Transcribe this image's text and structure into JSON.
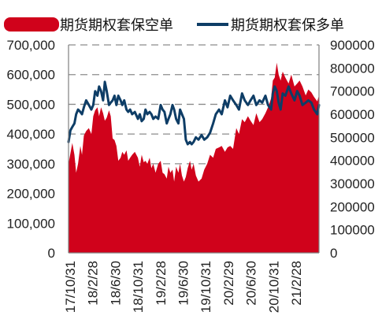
{
  "chart_data": {
    "type": "area",
    "title": "",
    "xlabel": "",
    "ylabel_left": "",
    "ylabel_right": "",
    "colors": {
      "short": "#D0021B",
      "long": "#0E3D66",
      "grid": "#8C8C8C",
      "axis": "#7F7F7F"
    },
    "grid": true,
    "legend_position": "top",
    "x_ticks": [
      "17/10/31",
      "18/2/28",
      "18/6/30",
      "18/10/31",
      "19/2/28",
      "19/6/30",
      "19/10/31",
      "20/2/29",
      "20/6/30",
      "20/10/31",
      "21/2/28"
    ],
    "left_axis": {
      "ylim": [
        0,
        700000
      ],
      "ticks": [
        "0",
        "100,000",
        "200,000",
        "300,000",
        "400,000",
        "500,000",
        "600,000",
        "700,000"
      ]
    },
    "right_axis": {
      "ylim": [
        0,
        900000
      ],
      "ticks": [
        "0",
        "100000",
        "200000",
        "300000",
        "400000",
        "500000",
        "600000",
        "700000",
        "800000",
        "900000"
      ]
    },
    "series": [
      {
        "name": "期货期权套保空单",
        "type": "area",
        "axis": "left",
        "x": [
          "2017-10-31",
          "2017-11-10",
          "2017-11-20",
          "2017-12-01",
          "2017-12-10",
          "2017-12-20",
          "2018-01-01",
          "2018-01-10",
          "2018-01-20",
          "2018-02-01",
          "2018-02-15",
          "2018-02-28",
          "2018-03-10",
          "2018-03-20",
          "2018-04-01",
          "2018-04-10",
          "2018-04-20",
          "2018-05-01",
          "2018-05-10",
          "2018-05-20",
          "2018-06-01",
          "2018-06-10",
          "2018-06-20",
          "2018-06-30",
          "2018-07-10",
          "2018-07-20",
          "2018-08-01",
          "2018-08-10",
          "2018-08-20",
          "2018-09-01",
          "2018-09-10",
          "2018-09-20",
          "2018-10-01",
          "2018-10-15",
          "2018-10-31",
          "2018-11-10",
          "2018-11-20",
          "2018-12-01",
          "2018-12-10",
          "2018-12-20",
          "2019-01-01",
          "2019-01-10",
          "2019-01-20",
          "2019-02-01",
          "2019-02-15",
          "2019-02-28",
          "2019-03-10",
          "2019-03-20",
          "2019-04-01",
          "2019-04-10",
          "2019-04-20",
          "2019-05-01",
          "2019-05-10",
          "2019-05-20",
          "2019-06-01",
          "2019-06-10",
          "2019-06-20",
          "2019-06-30",
          "2019-07-10",
          "2019-07-20",
          "2019-08-01",
          "2019-08-10",
          "2019-08-20",
          "2019-09-01",
          "2019-09-15",
          "2019-10-01",
          "2019-10-15",
          "2019-10-31",
          "2019-11-15",
          "2019-12-01",
          "2019-12-15",
          "2020-01-01",
          "2020-01-15",
          "2020-02-01",
          "2020-02-15",
          "2020-02-29",
          "2020-03-15",
          "2020-04-01",
          "2020-04-15",
          "2020-05-01",
          "2020-05-15",
          "2020-06-01",
          "2020-06-15",
          "2020-06-30",
          "2020-07-15",
          "2020-08-01",
          "2020-08-15",
          "2020-09-01",
          "2020-09-15",
          "2020-10-01",
          "2020-10-10",
          "2020-10-20",
          "2020-10-31",
          "2020-11-10",
          "2020-11-20",
          "2020-12-01",
          "2020-12-15",
          "2021-01-01",
          "2021-01-15",
          "2021-02-01",
          "2021-02-15",
          "2021-02-28",
          "2021-03-15",
          "2021-04-01",
          "2021-04-15",
          "2021-05-01",
          "2021-05-15",
          "2021-06-01",
          "2021-06-10"
        ],
        "values": [
          300000,
          335000,
          370000,
          330000,
          270000,
          300000,
          360000,
          330000,
          395000,
          410000,
          420000,
          400000,
          460000,
          480000,
          490000,
          460000,
          490000,
          470000,
          445000,
          455000,
          480000,
          460000,
          385000,
          380000,
          360000,
          310000,
          320000,
          340000,
          330000,
          345000,
          310000,
          320000,
          330000,
          340000,
          320000,
          290000,
          330000,
          305000,
          310000,
          300000,
          320000,
          285000,
          300000,
          270000,
          300000,
          310000,
          270000,
          265000,
          250000,
          290000,
          270000,
          280000,
          240000,
          290000,
          270000,
          300000,
          260000,
          240000,
          255000,
          285000,
          310000,
          280000,
          300000,
          260000,
          240000,
          250000,
          280000,
          300000,
          330000,
          320000,
          350000,
          355000,
          360000,
          340000,
          355000,
          360000,
          350000,
          420000,
          400000,
          450000,
          440000,
          460000,
          445000,
          430000,
          470000,
          440000,
          450000,
          470000,
          490000,
          520000,
          580000,
          590000,
          640000,
          600000,
          580000,
          610000,
          590000,
          570000,
          600000,
          560000,
          570000,
          580000,
          560000,
          530000,
          550000,
          540000,
          525000,
          510000,
          530000
        ]
      },
      {
        "name": "期货期权套保多单",
        "type": "line",
        "axis": "right",
        "x": [
          "2017-10-31",
          "2017-11-10",
          "2017-11-20",
          "2017-12-01",
          "2017-12-10",
          "2017-12-20",
          "2018-01-01",
          "2018-01-10",
          "2018-01-20",
          "2018-02-01",
          "2018-02-15",
          "2018-02-28",
          "2018-03-10",
          "2018-03-20",
          "2018-04-01",
          "2018-04-10",
          "2018-04-20",
          "2018-05-01",
          "2018-05-10",
          "2018-05-20",
          "2018-06-01",
          "2018-06-10",
          "2018-06-20",
          "2018-06-30",
          "2018-07-10",
          "2018-07-20",
          "2018-08-01",
          "2018-08-10",
          "2018-08-20",
          "2018-09-01",
          "2018-09-10",
          "2018-09-20",
          "2018-10-01",
          "2018-10-15",
          "2018-10-31",
          "2018-11-10",
          "2018-11-20",
          "2018-12-01",
          "2018-12-10",
          "2018-12-20",
          "2019-01-01",
          "2019-01-10",
          "2019-01-20",
          "2019-02-01",
          "2019-02-15",
          "2019-02-28",
          "2019-03-10",
          "2019-03-20",
          "2019-04-01",
          "2019-04-10",
          "2019-04-20",
          "2019-05-01",
          "2019-05-10",
          "2019-05-20",
          "2019-06-01",
          "2019-06-10",
          "2019-06-20",
          "2019-06-30",
          "2019-07-10",
          "2019-07-20",
          "2019-08-01",
          "2019-08-10",
          "2019-08-20",
          "2019-09-01",
          "2019-09-15",
          "2019-10-01",
          "2019-10-15",
          "2019-10-31",
          "2019-11-15",
          "2019-12-01",
          "2019-12-15",
          "2020-01-01",
          "2020-01-15",
          "2020-02-01",
          "2020-02-15",
          "2020-02-29",
          "2020-03-15",
          "2020-04-01",
          "2020-04-15",
          "2020-05-01",
          "2020-05-15",
          "2020-06-01",
          "2020-06-15",
          "2020-06-30",
          "2020-07-15",
          "2020-08-01",
          "2020-08-15",
          "2020-09-01",
          "2020-09-15",
          "2020-10-01",
          "2020-10-10",
          "2020-10-20",
          "2020-10-31",
          "2020-11-10",
          "2020-11-20",
          "2020-12-01",
          "2020-12-15",
          "2021-01-01",
          "2021-01-15",
          "2021-02-01",
          "2021-02-15",
          "2021-02-28",
          "2021-03-15",
          "2021-04-01",
          "2021-04-15",
          "2021-05-01",
          "2021-05-15",
          "2021-06-01",
          "2021-06-10"
        ],
        "values": [
          480000,
          530000,
          545000,
          560000,
          600000,
          620000,
          610000,
          600000,
          630000,
          660000,
          640000,
          620000,
          640000,
          700000,
          680000,
          720000,
          700000,
          660000,
          740000,
          700000,
          640000,
          650000,
          660000,
          680000,
          640000,
          680000,
          660000,
          640000,
          660000,
          620000,
          610000,
          620000,
          600000,
          610000,
          580000,
          600000,
          570000,
          580000,
          620000,
          600000,
          610000,
          600000,
          580000,
          590000,
          580000,
          640000,
          620000,
          610000,
          560000,
          580000,
          600000,
          640000,
          620000,
          580000,
          560000,
          620000,
          600000,
          580000,
          490000,
          470000,
          480000,
          470000,
          480000,
          500000,
          490000,
          510000,
          490000,
          500000,
          520000,
          560000,
          600000,
          620000,
          600000,
          660000,
          630000,
          680000,
          660000,
          640000,
          620000,
          690000,
          660000,
          640000,
          660000,
          680000,
          640000,
          660000,
          650000,
          680000,
          640000,
          620000,
          690000,
          720000,
          700000,
          650000,
          620000,
          690000,
          680000,
          720000,
          690000,
          660000,
          700000,
          680000,
          640000,
          650000,
          660000,
          650000,
          620000,
          600000,
          640000
        ]
      }
    ]
  }
}
